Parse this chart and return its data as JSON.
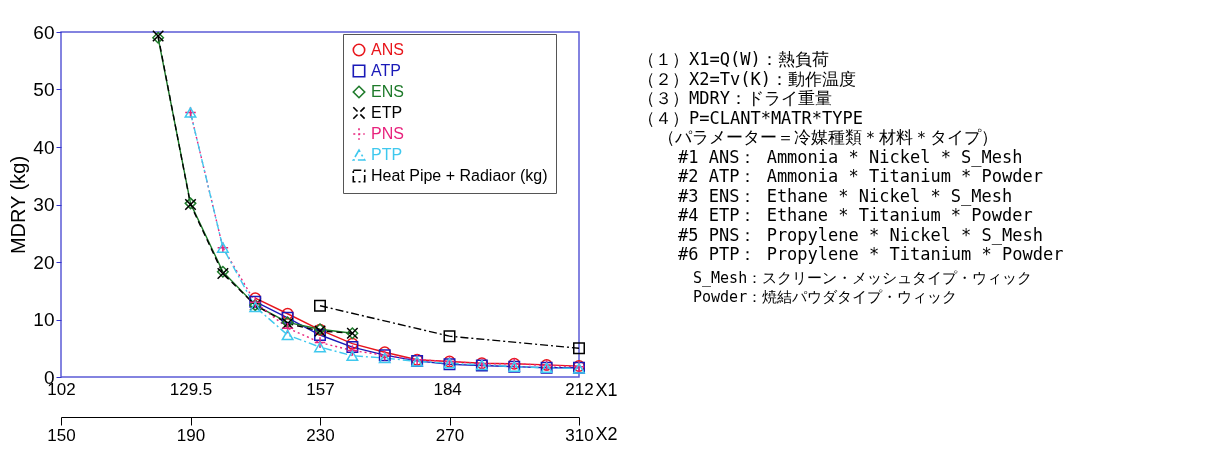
{
  "chart_data": {
    "type": "line",
    "xlabel": "X2",
    "x2label": "X1",
    "ylabel": "MDRY (kg)",
    "xlim": [
      150,
      310
    ],
    "xticks": [
      150,
      190,
      230,
      270,
      310
    ],
    "x2lim": [
      102,
      212
    ],
    "x2ticks": [
      102,
      129.5,
      157,
      184,
      212
    ],
    "ylim": [
      0,
      60
    ],
    "yticks": [
      0,
      10,
      20,
      30,
      40,
      50,
      60
    ],
    "grid": false,
    "legend": "top right",
    "series": [
      {
        "name": "ANS",
        "color": "#e8151b",
        "marker": "circle",
        "line_style": "solid",
        "x": [
          210,
          220,
          230,
          240,
          250,
          260,
          270,
          280,
          290,
          300,
          310
        ],
        "values": [
          13.7,
          11.0,
          8.2,
          5.8,
          4.3,
          3.0,
          2.7,
          2.4,
          2.3,
          2.1,
          1.9
        ]
      },
      {
        "name": "ATP",
        "color": "#1a1ab8",
        "marker": "square",
        "line_style": "solid",
        "x": [
          210,
          220,
          230,
          240,
          250,
          260,
          270,
          280,
          290,
          300,
          310
        ],
        "values": [
          13.1,
          10.3,
          7.3,
          5.2,
          3.8,
          2.8,
          2.2,
          2.0,
          1.8,
          1.6,
          1.6
        ]
      },
      {
        "name": "ENS",
        "color": "#1e7a2a",
        "marker": "diamond",
        "line_style": "solid",
        "x": [
          180,
          190,
          200,
          210,
          220,
          230,
          240
        ],
        "values": [
          59,
          30.2,
          18.3,
          12.5,
          9.5,
          8.3,
          7.6
        ]
      },
      {
        "name": "ETP",
        "color": "#000000",
        "marker": "cross",
        "line_style": "dashed",
        "x": [
          180,
          190,
          200,
          210,
          220,
          230,
          240
        ],
        "values": [
          59.3,
          30,
          18,
          12.5,
          9.3,
          8,
          7.6
        ]
      },
      {
        "name": "PNS",
        "color": "#e8237d",
        "marker": "plus",
        "line_style": "dotted",
        "x": [
          190,
          200,
          210,
          220,
          230,
          240,
          250,
          260,
          270,
          280,
          290,
          300,
          310
        ],
        "values": [
          46,
          22.5,
          13,
          8.5,
          6,
          4.6,
          3.8,
          3.0,
          2.7,
          2.3,
          2.3,
          2.0,
          1.8
        ]
      },
      {
        "name": "PTP",
        "color": "#3fc8ee",
        "marker": "triangle",
        "line_style": "dashdot",
        "x": [
          190,
          200,
          210,
          220,
          230,
          240,
          250,
          260,
          270,
          280,
          290,
          300,
          310
        ],
        "values": [
          46,
          22.5,
          12.2,
          7.3,
          5.2,
          3.7,
          3.3,
          2.7,
          2.4,
          2.1,
          1.8,
          1.6,
          1.5
        ]
      },
      {
        "name": "Heat Pipe + Radiaor (kg)",
        "color": "#000000",
        "marker": "square",
        "line_style": "dashdot",
        "x": [
          230,
          270,
          310
        ],
        "values": [
          12.4,
          7.1,
          5.0
        ]
      }
    ],
    "annotations": [
      "（１）X1=Q(W)：熱負荷",
      "（２）X2=Tv(K)：動作温度",
      "（３）MDRY：ドライ重量",
      "（４）P=CLANT*MATR*TYPE",
      "（パラメーター＝冷媒種類＊材料＊タイプ）",
      "#1 ANS： Ammonia   * Nickel   * S_Mesh",
      "#2 ATP： Ammonia   * Titanium * Powder",
      "#3 ENS： Ethane    * Nickel   * S_Mesh",
      "#4 ETP： Ethane    * Titanium * Powder",
      "#5 PNS： Propylene * Nickel   * S_Mesh",
      "#6 PTP： Propylene * Titanium * Powder",
      "S_Mesh：スクリーン・メッシュタイプ・ウィック",
      "Powder：焼結パウダタイプ・ウィック"
    ]
  }
}
